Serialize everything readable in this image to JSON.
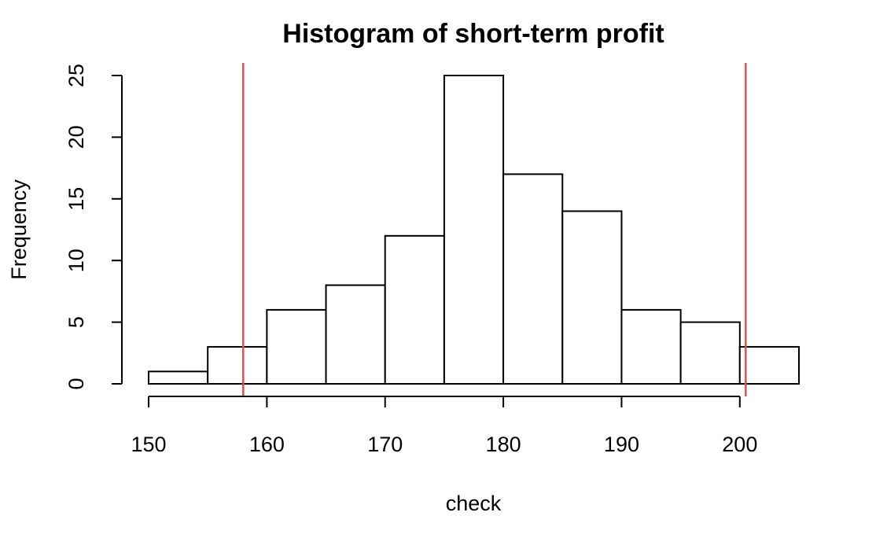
{
  "chart_data": {
    "type": "bar",
    "title": "Histogram of short-term profit",
    "xlabel": "check",
    "ylabel": "Frequency",
    "bin_edges": [
      150,
      155,
      160,
      165,
      170,
      175,
      180,
      185,
      190,
      195,
      200,
      205
    ],
    "values": [
      1,
      3,
      6,
      8,
      12,
      25,
      17,
      14,
      6,
      5,
      3
    ],
    "x_ticks": [
      150,
      160,
      170,
      180,
      190,
      200
    ],
    "y_ticks": [
      0,
      5,
      10,
      15,
      20,
      25
    ],
    "xlim": [
      150,
      205
    ],
    "ylim": [
      0,
      25
    ],
    "reference_lines": [
      {
        "x": 158.0,
        "color": "#d9534f"
      },
      {
        "x": 200.5,
        "color": "#d9534f"
      }
    ],
    "grid": false,
    "bar_fill": "#ffffff",
    "bar_stroke": "#000000"
  }
}
